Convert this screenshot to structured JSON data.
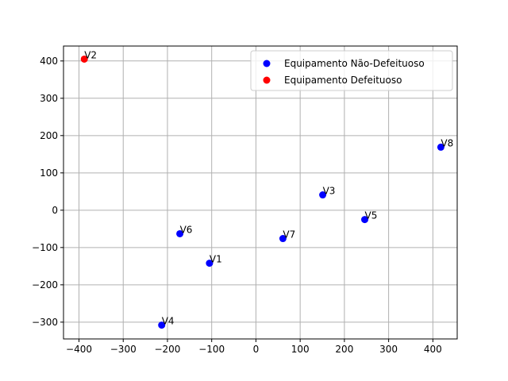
{
  "chart_data": {
    "type": "scatter",
    "title": "",
    "xlabel": "",
    "ylabel": "",
    "xlim": [
      -435,
      455
    ],
    "ylim": [
      -345,
      440
    ],
    "x_ticks": [
      -400,
      -300,
      -200,
      -100,
      0,
      100,
      200,
      300,
      400
    ],
    "y_ticks": [
      -300,
      -200,
      -100,
      0,
      100,
      200,
      300,
      400
    ],
    "grid": true,
    "legend_position": "top-right",
    "series": [
      {
        "name": "Equipamento Não-Defeituoso",
        "color": "#0000ff",
        "points": [
          {
            "label": "V1",
            "x": -105,
            "y": -142
          },
          {
            "label": "V3",
            "x": 151,
            "y": 41
          },
          {
            "label": "V4",
            "x": -213,
            "y": -308
          },
          {
            "label": "V5",
            "x": 246,
            "y": -25
          },
          {
            "label": "V6",
            "x": -172,
            "y": -63
          },
          {
            "label": "V7",
            "x": 61,
            "y": -76
          },
          {
            "label": "V8",
            "x": 418,
            "y": 169
          }
        ]
      },
      {
        "name": "Equipamento Defeituoso",
        "color": "#ff0000",
        "points": [
          {
            "label": "V2",
            "x": -388,
            "y": 405
          }
        ]
      }
    ]
  }
}
